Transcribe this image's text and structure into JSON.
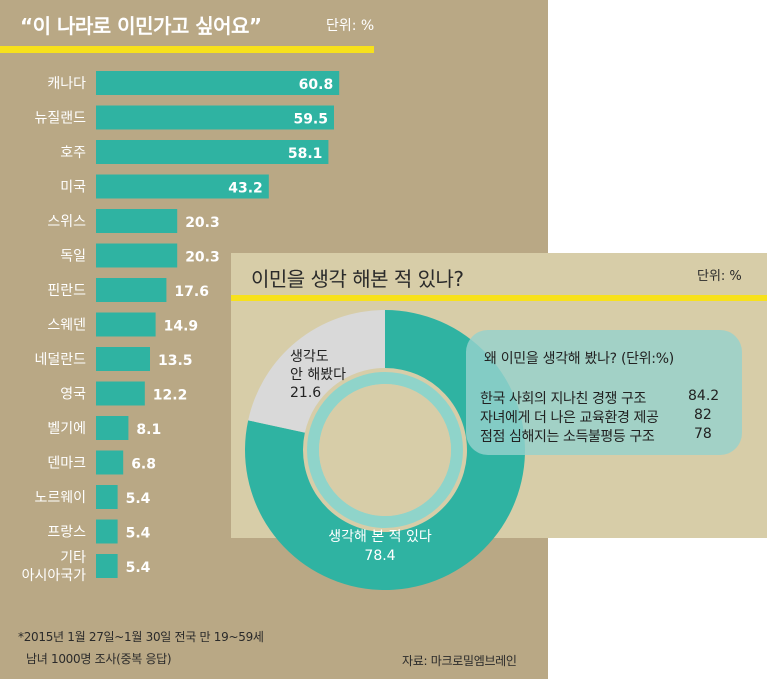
{
  "panel_a": {
    "title": "“이 나라로 이민가고 싶어요”",
    "unit": "단위: %",
    "note_line1": "*2015년 1월 27일~1월 30일 전국 만 19~59세",
    "note_line2": "남녀 1000명 조사(중복 응답)",
    "source": "자료: 마크로밀엠브레인"
  },
  "panel_b": {
    "title": "이민을 생각 해본 적 있나?",
    "unit": "단위: %",
    "callout": {
      "title": "왜 이민을 생각해 봤나? (단위:%)",
      "reasons": [
        {
          "label": "한국 사회의 지나친 경쟁 구조",
          "value": "84.2"
        },
        {
          "label": "자녀에게 더 나은 교육환경 제공",
          "value": "82"
        },
        {
          "label": "점점 심해지는 소득불평등 구조",
          "value": "78"
        }
      ]
    }
  },
  "colors": {
    "bar": "#2fb3a2",
    "panel_a_bg": "#b9a885",
    "panel_b_bg": "#d7cda8",
    "accent": "#f7e11c",
    "donut_no": "#d9d9d9",
    "donut_ring": "#8fd4ca"
  },
  "chart_data": [
    {
      "type": "bar",
      "orientation": "horizontal",
      "title": "“이 나라로 이민가고 싶어요”",
      "unit": "단위: %",
      "categories": [
        "캐나다",
        "뉴질랜드",
        "호주",
        "미국",
        "스위스",
        "독일",
        "핀란드",
        "스웨덴",
        "네덜란드",
        "영국",
        "벨기에",
        "덴마크",
        "노르웨이",
        "프랑스",
        "기타\n아시아국가"
      ],
      "values": [
        60.8,
        59.5,
        58.1,
        43.2,
        20.3,
        20.3,
        17.6,
        14.9,
        13.5,
        12.2,
        8.1,
        6.8,
        5.4,
        5.4,
        5.4
      ],
      "value_labels": [
        "60.8",
        "59.5",
        "58.1",
        "43.2",
        "20.3",
        "20.3",
        "17.6",
        "14.9",
        "13.5",
        "12.2",
        "8.1",
        "6.8",
        "5.4",
        "5.4",
        "5.4"
      ],
      "grid": false
    },
    {
      "type": "pie",
      "title": "이민을 생각 해본 적 있나?",
      "unit": "단위: %",
      "donut": true,
      "slices": [
        {
          "label": "생각해 본 적 있다",
          "value": 78.4,
          "value_label": "78.4",
          "color": "#2fb3a2"
        },
        {
          "label": "생각도\n안 해봤다",
          "value": 21.6,
          "value_label": "21.6",
          "color": "#d9d9d9"
        }
      ]
    }
  ]
}
